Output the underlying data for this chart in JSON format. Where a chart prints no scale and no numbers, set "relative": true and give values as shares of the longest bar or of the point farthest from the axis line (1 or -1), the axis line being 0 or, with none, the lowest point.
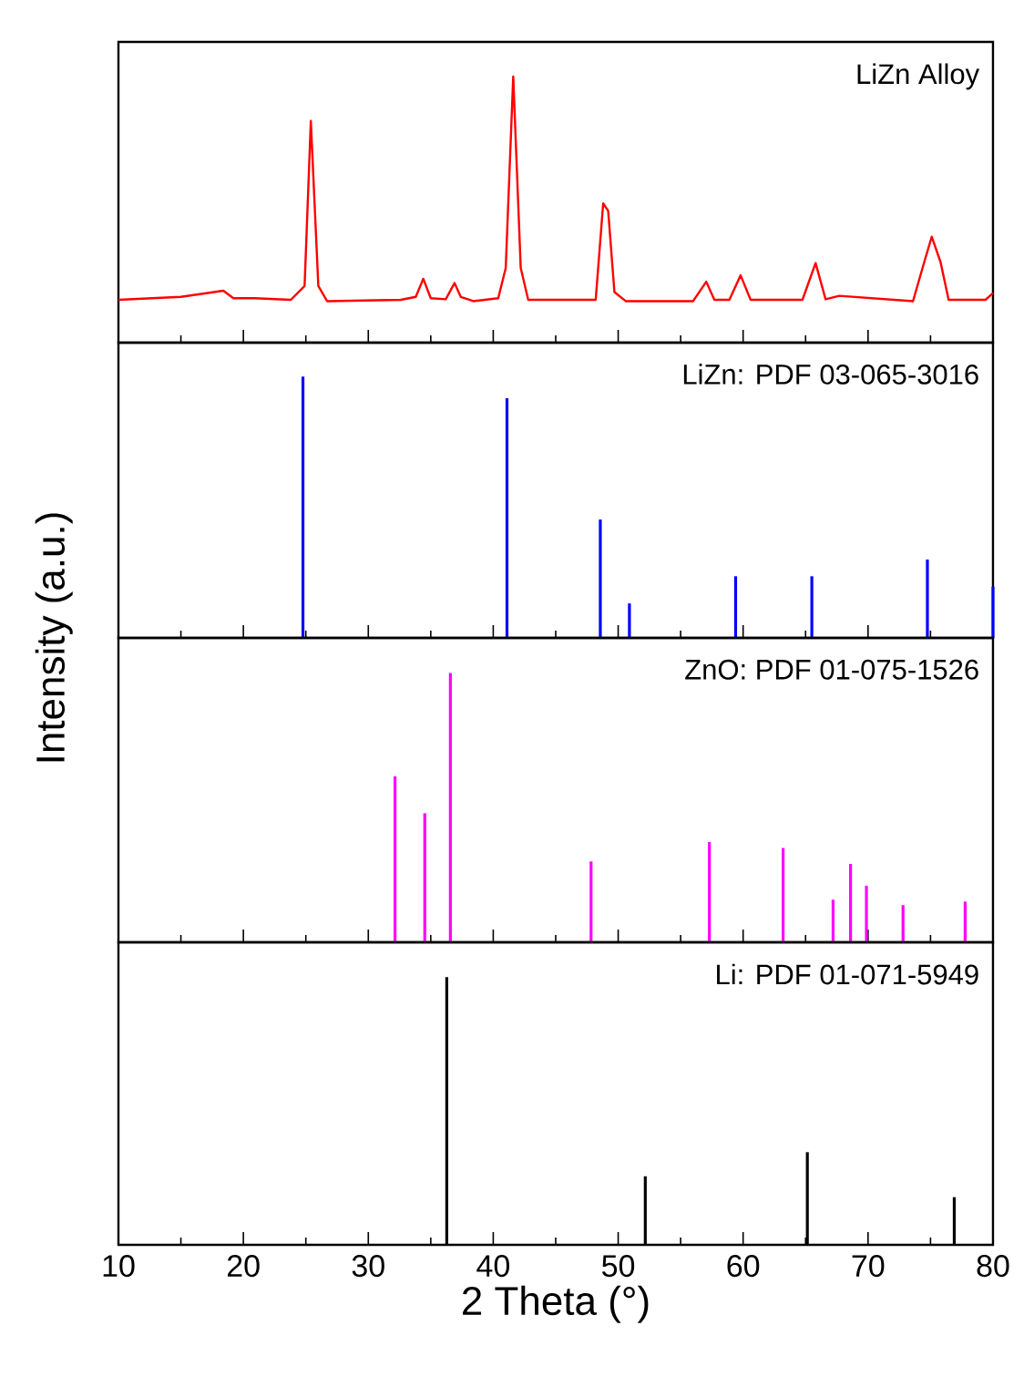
{
  "chart_data": [
    {
      "type": "line",
      "title": "LiZn Alloy",
      "relative": true,
      "color": "#ff0000",
      "x": [
        10,
        15.0,
        18.4,
        19.2,
        20.9,
        23.8,
        24.9,
        25.4,
        26.0,
        26.7,
        32.6,
        33.8,
        34.4,
        35.0,
        36.2,
        36.9,
        37.4,
        38.4,
        40.4,
        41.0,
        41.6,
        42.2,
        42.8,
        48.2,
        48.8,
        49.2,
        49.7,
        50.6,
        56.0,
        57.05,
        57.7,
        58.9,
        59.8,
        60.6,
        64.75,
        65.8,
        66.6,
        67.7,
        73.6,
        74.5,
        75.1,
        75.8,
        76.45,
        79.4,
        80
      ],
      "values": [
        0.161,
        0.172,
        0.195,
        0.167,
        0.167,
        0.161,
        0.213,
        0.833,
        0.213,
        0.156,
        0.161,
        0.172,
        0.24,
        0.167,
        0.163,
        0.224,
        0.172,
        0.156,
        0.167,
        0.281,
        1.0,
        0.281,
        0.161,
        0.161,
        0.523,
        0.495,
        0.19,
        0.156,
        0.156,
        0.229,
        0.161,
        0.161,
        0.253,
        0.161,
        0.161,
        0.299,
        0.163,
        0.176,
        0.156,
        0.303,
        0.398,
        0.303,
        0.161,
        0.161,
        0.186
      ],
      "xlim": [
        10,
        80
      ],
      "xticks": [
        10,
        {
          "value": 15,
          "label": null
        },
        20,
        {
          "value": 25,
          "label": null
        },
        30,
        {
          "value": 35,
          "label": null
        },
        40,
        {
          "value": 45,
          "label": null
        },
        50,
        {
          "value": 55,
          "label": null
        },
        60,
        {
          "value": 65,
          "label": null
        },
        70,
        {
          "value": 75,
          "label": null
        },
        80
      ],
      "tick_labels": false
    },
    {
      "type": "bar",
      "title": "LiZn: PDF 03-065-3016",
      "relative": true,
      "color": "#0000ff",
      "ylabel": "Intensity (a.u.)",
      "x": [
        24.77,
        41.1,
        48.57,
        50.9,
        59.4,
        65.5,
        74.75,
        80
      ],
      "values": [
        1,
        0.917,
        0.453,
        0.132,
        0.236,
        0.236,
        0.3,
        0.196
      ],
      "xlim": [
        10,
        80
      ],
      "xticks": [
        10,
        {
          "value": 15,
          "label": null
        },
        20,
        {
          "value": 25,
          "label": null
        },
        30,
        {
          "value": 35,
          "label": null
        },
        40,
        {
          "value": 45,
          "label": null
        },
        50,
        {
          "value": 55,
          "label": null
        },
        60,
        {
          "value": 65,
          "label": null
        },
        70,
        {
          "value": 75,
          "label": null
        },
        80
      ],
      "tick_labels": false
    },
    {
      "type": "bar",
      "title": "ZnO: PDF 01-075-1526",
      "relative": true,
      "color": "#ff00ff",
      "x": [
        32.14,
        34.52,
        36.57,
        47.83,
        57.3,
        63.2,
        67.2,
        68.6,
        69.87,
        72.8,
        77.77
      ],
      "values": [
        0.616,
        0.479,
        1,
        0.3,
        0.372,
        0.35,
        0.158,
        0.291,
        0.21,
        0.138,
        0.151
      ],
      "xlim": [
        10,
        80
      ],
      "xticks": [
        10,
        {
          "value": 15,
          "label": null
        },
        20,
        {
          "value": 25,
          "label": null
        },
        30,
        {
          "value": 35,
          "label": null
        },
        40,
        {
          "value": 45,
          "label": null
        },
        50,
        {
          "value": 55,
          "label": null
        },
        60,
        {
          "value": 65,
          "label": null
        },
        70,
        {
          "value": 75,
          "label": null
        },
        80
      ],
      "tick_labels": false
    },
    {
      "type": "bar",
      "title": "Li: PDF 01-071-5949",
      "relative": true,
      "color": "#000000",
      "xlabel": "2 Theta (°)",
      "x": [
        36.28,
        52.17,
        65.14,
        76.9
      ],
      "values": [
        1,
        0.256,
        0.346,
        0.178
      ],
      "xlim": [
        10,
        80
      ],
      "xticks": [
        10,
        {
          "value": 15,
          "label": null
        },
        20,
        {
          "value": 25,
          "label": null
        },
        30,
        {
          "value": 35,
          "label": null
        },
        40,
        {
          "value": 45,
          "label": null
        },
        50,
        {
          "value": 55,
          "label": null
        },
        60,
        {
          "value": 65,
          "label": null
        },
        70,
        {
          "value": 75,
          "label": null
        },
        80
      ],
      "tick_labels": "x"
    }
  ]
}
